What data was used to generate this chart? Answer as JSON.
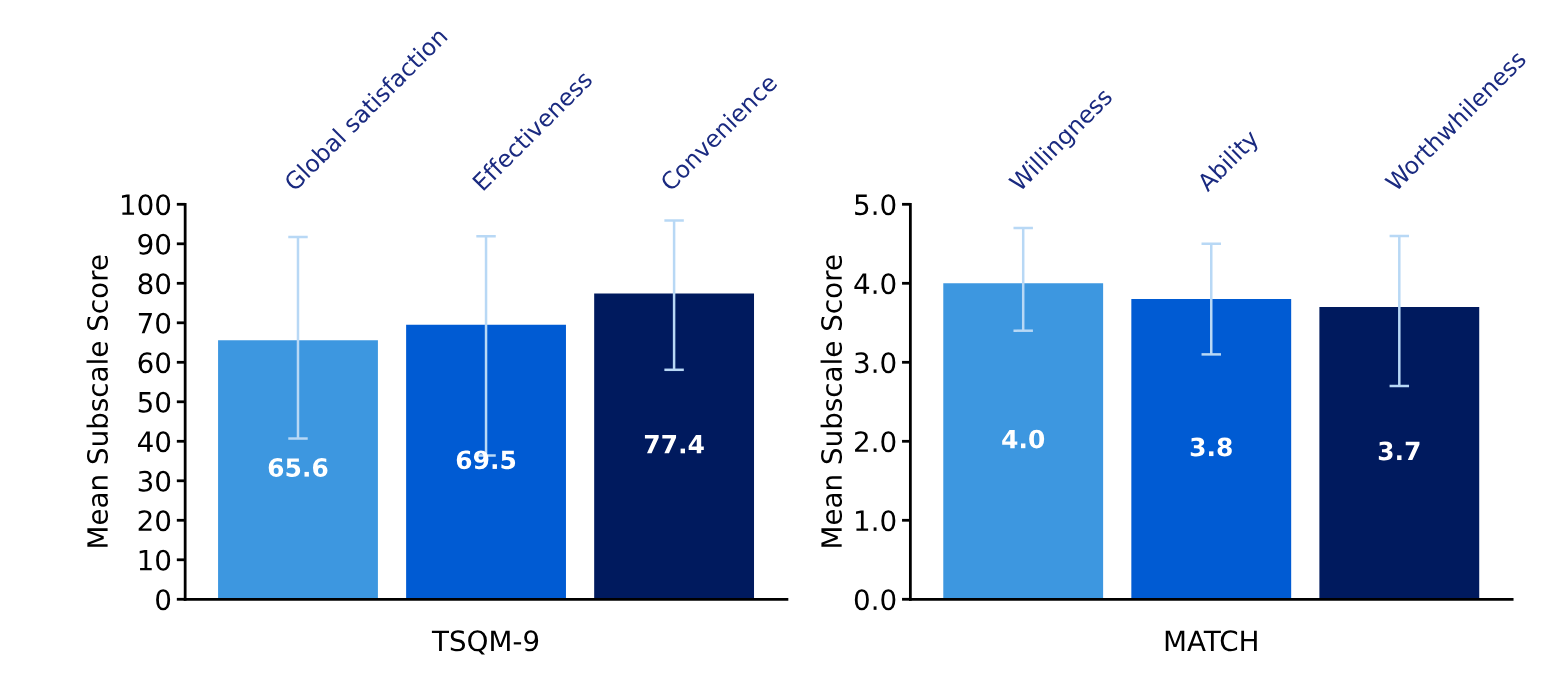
{
  "chart_data": [
    {
      "type": "bar",
      "categories": [
        "Global satisfaction",
        "Effectiveness",
        "Convenience"
      ],
      "values": [
        65.6,
        69.5,
        77.4
      ],
      "colors": [
        "#3d97e0",
        "#005bd3",
        "#001a5e"
      ],
      "errors": [
        [
          40.7,
          91.7
        ],
        [
          36.4,
          91.9
        ],
        [
          58.1,
          95.9
        ]
      ],
      "xlabel": "TSQM-9",
      "ylabel": "Mean Subscale Score",
      "ylim": [
        0,
        100
      ],
      "yticks": [
        0,
        10,
        20,
        30,
        40,
        50,
        60,
        70,
        80,
        90,
        100
      ],
      "value_labels": [
        "65.6",
        "69.5",
        "77.4"
      ]
    },
    {
      "type": "bar",
      "categories": [
        "Willingness",
        "Ability",
        "Worthwhileness"
      ],
      "values": [
        4.0,
        3.8,
        3.7
      ],
      "colors": [
        "#3d97e0",
        "#005bd3",
        "#001a5e"
      ],
      "errors": [
        [
          3.4,
          4.7
        ],
        [
          3.1,
          4.5
        ],
        [
          2.7,
          4.6
        ]
      ],
      "xlabel": "MATCH",
      "ylabel": "Mean Subscale Score",
      "ylim": [
        0,
        5
      ],
      "yticks": [
        {
          "value": 0,
          "label": "0.0"
        },
        {
          "value": 1,
          "label": "1.0"
        },
        {
          "value": 2,
          "label": "2.0"
        },
        {
          "value": 3,
          "label": "3.0"
        },
        {
          "value": 4,
          "label": "4.0"
        },
        {
          "value": 5,
          "label": "5.0"
        }
      ],
      "value_labels": [
        "4.0",
        "3.8",
        "3.7"
      ]
    }
  ]
}
